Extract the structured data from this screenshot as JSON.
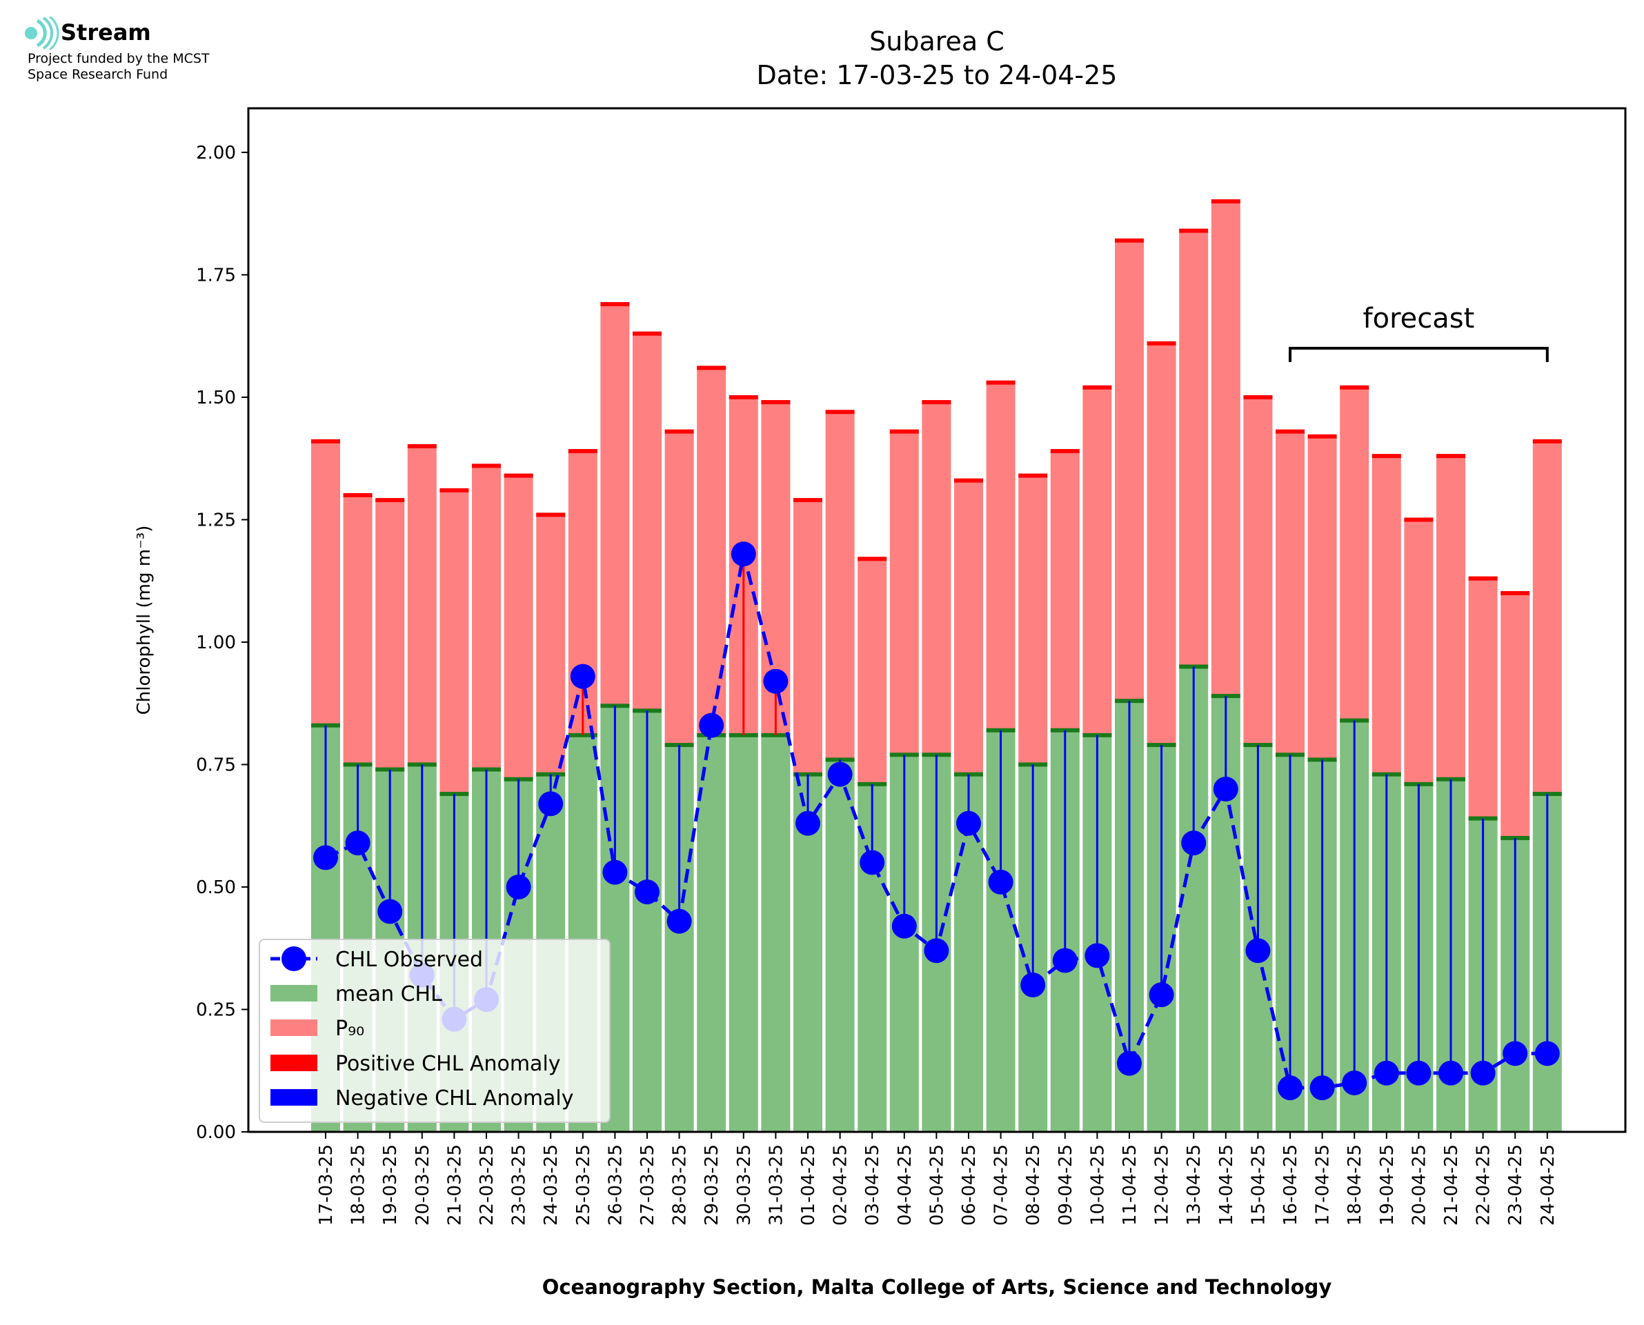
{
  "logo": {
    "name": "Stream",
    "line1": "Project funded by the MCST",
    "line2": "Space Research Fund"
  },
  "chart_data": {
    "type": "bar",
    "title": "Subarea C",
    "subtitle": "Date: 17-03-25 to 24-04-25",
    "xlabel": "Oceanography Section, Malta College of Arts, Science and Technology",
    "ylabel": "Chlorophyll (mg m⁻³)",
    "ylim": [
      0,
      2.09
    ],
    "yticks": [
      0.0,
      0.25,
      0.5,
      0.75,
      1.0,
      1.25,
      1.5,
      1.75,
      2.0
    ],
    "ytick_labels": [
      "0.00",
      "0.25",
      "0.50",
      "0.75",
      "1.00",
      "1.25",
      "1.50",
      "1.75",
      "2.00"
    ],
    "grid": false,
    "legend_position": "lower-left",
    "categories": [
      "17-03-25",
      "18-03-25",
      "19-03-25",
      "20-03-25",
      "21-03-25",
      "22-03-25",
      "23-03-25",
      "24-03-25",
      "25-03-25",
      "26-03-25",
      "27-03-25",
      "28-03-25",
      "29-03-25",
      "30-03-25",
      "31-03-25",
      "01-04-25",
      "02-04-25",
      "03-04-25",
      "04-04-25",
      "05-04-25",
      "06-04-25",
      "07-04-25",
      "08-04-25",
      "09-04-25",
      "10-04-25",
      "11-04-25",
      "12-04-25",
      "13-04-25",
      "14-04-25",
      "15-04-25",
      "16-04-25",
      "17-04-25",
      "18-04-25",
      "19-04-25",
      "20-04-25",
      "21-04-25",
      "22-04-25",
      "23-04-25",
      "24-04-25"
    ],
    "series": [
      {
        "name": "CHL Observed",
        "type": "line",
        "style": "dashed",
        "marker": "circle",
        "color": "#0000ff",
        "values": [
          0.56,
          0.59,
          0.45,
          0.32,
          0.23,
          0.27,
          0.5,
          0.67,
          0.93,
          0.53,
          0.49,
          0.43,
          0.83,
          1.18,
          0.92,
          0.63,
          0.73,
          0.55,
          0.42,
          0.37,
          0.63,
          0.51,
          0.3,
          0.35,
          0.36,
          0.14,
          0.28,
          0.59,
          0.7,
          0.37,
          0.09,
          0.09,
          0.1,
          0.12,
          0.12,
          0.12,
          0.12,
          0.16,
          0.16
        ]
      },
      {
        "name": "mean CHL",
        "type": "bar",
        "color": "#80bf80",
        "values": [
          0.83,
          0.75,
          0.74,
          0.75,
          0.69,
          0.74,
          0.72,
          0.73,
          0.81,
          0.87,
          0.86,
          0.79,
          0.81,
          0.81,
          0.81,
          0.73,
          0.76,
          0.71,
          0.77,
          0.77,
          0.73,
          0.82,
          0.75,
          0.82,
          0.81,
          0.88,
          0.79,
          0.95,
          0.89,
          0.79,
          0.77,
          0.76,
          0.84,
          0.73,
          0.71,
          0.72,
          0.64,
          0.6,
          0.69
        ]
      },
      {
        "name": "P₉₀",
        "type": "bar",
        "color": "#ff8080",
        "values": [
          1.41,
          1.3,
          1.29,
          1.4,
          1.31,
          1.36,
          1.34,
          1.26,
          1.39,
          1.69,
          1.63,
          1.43,
          1.56,
          1.5,
          1.49,
          1.29,
          1.47,
          1.17,
          1.43,
          1.49,
          1.33,
          1.53,
          1.34,
          1.39,
          1.52,
          1.82,
          1.61,
          1.84,
          1.9,
          1.5,
          1.43,
          1.42,
          1.52,
          1.38,
          1.25,
          1.38,
          1.13,
          1.1,
          1.41
        ]
      },
      {
        "name": "Positive CHL Anomaly",
        "type": "anomaly",
        "color": "#ff0000"
      },
      {
        "name": "Negative CHL Anomaly",
        "type": "anomaly",
        "color": "#0000ff"
      }
    ],
    "annotations": [
      {
        "text": "forecast",
        "from": "16-04-25",
        "to": "24-04-25",
        "y": 1.6
      }
    ]
  }
}
